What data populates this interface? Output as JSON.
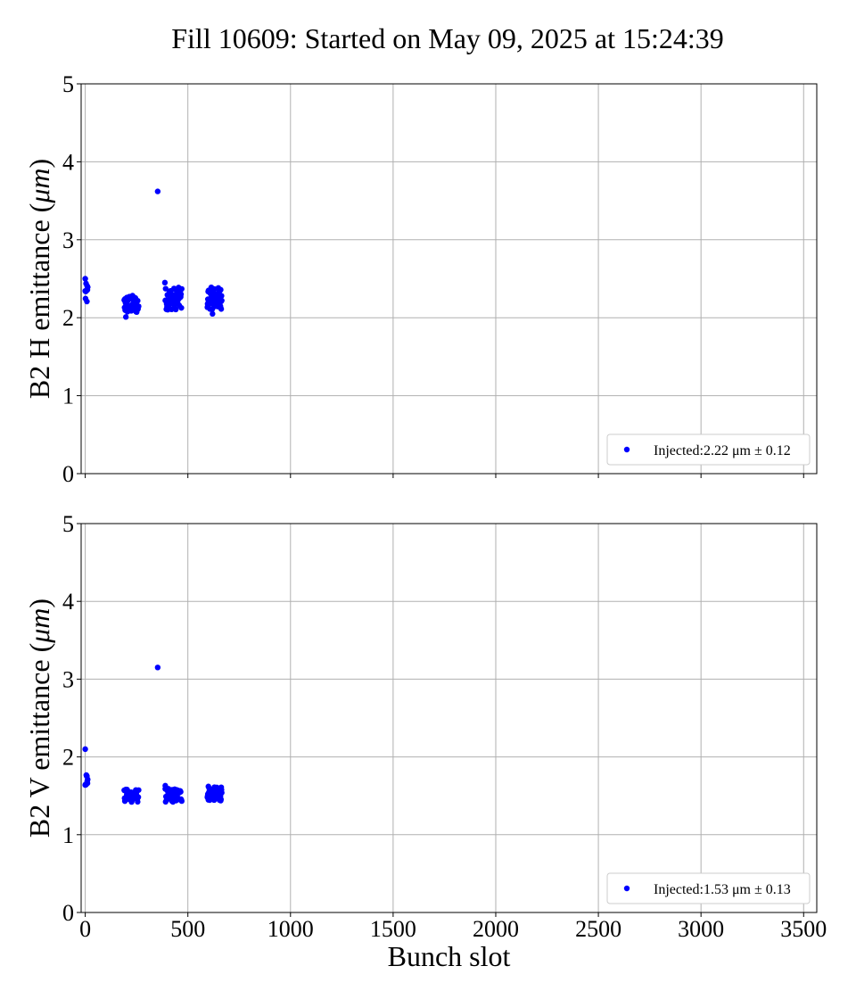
{
  "figure_title": "Fill 10609: Started on May 09, 2025 at 15:24:39",
  "colors": {
    "marker": "#0000ff",
    "grid": "#b0b0b0",
    "axis": "#000000"
  },
  "chart_data": [
    {
      "type": "scatter",
      "ylabel_text": "B2 H emittance (",
      "ylabel_unit": "μm",
      "ylabel_close": ")",
      "xlabel": "",
      "xlim": [
        -20,
        3564
      ],
      "ylim": [
        0,
        5
      ],
      "xticks": [
        0,
        500,
        1000,
        1500,
        2000,
        2500,
        3000,
        3500
      ],
      "yticks": [
        0,
        1,
        2,
        3,
        4,
        5
      ],
      "show_xtick_labels": false,
      "grid": true,
      "legend_position": "lower-right",
      "series": [
        {
          "name": "Injected:2.22 μm ± 0.12",
          "color": "#0000ff",
          "groups": [
            {
              "x_start": 0,
              "x_end": 12,
              "count": 10,
              "ymin": 2.1,
              "ymax": 2.5
            },
            {
              "x_start": 190,
              "x_end": 260,
              "count": 46,
              "ymin": 2.0,
              "ymax": 2.34
            },
            {
              "x_start": 390,
              "x_end": 470,
              "count": 48,
              "ymin": 2.04,
              "ymax": 2.45
            },
            {
              "x_start": 595,
              "x_end": 665,
              "count": 56,
              "ymin": 2.05,
              "ymax": 2.45
            }
          ],
          "outliers": [
            {
              "x": 353,
              "y": 3.62
            },
            {
              "x": 0,
              "y": 2.5
            },
            {
              "x": 198,
              "y": 2.01
            },
            {
              "x": 388,
              "y": 2.45
            },
            {
              "x": 620,
              "y": 2.05
            }
          ]
        }
      ]
    },
    {
      "type": "scatter",
      "ylabel_text": "B2 V emittance (",
      "ylabel_unit": "μm",
      "ylabel_close": ")",
      "xlabel": "Bunch slot",
      "xlim": [
        -20,
        3564
      ],
      "ylim": [
        0,
        5
      ],
      "xticks": [
        0,
        500,
        1000,
        1500,
        2000,
        2500,
        3000,
        3500
      ],
      "yticks": [
        0,
        1,
        2,
        3,
        4,
        5
      ],
      "show_xtick_labels": true,
      "grid": true,
      "legend_position": "lower-right",
      "series": [
        {
          "name": "Injected:1.53 μm ± 0.13",
          "color": "#0000ff",
          "groups": [
            {
              "x_start": 0,
              "x_end": 12,
              "count": 10,
              "ymin": 1.58,
              "ymax": 1.85
            },
            {
              "x_start": 190,
              "x_end": 260,
              "count": 46,
              "ymin": 1.38,
              "ymax": 1.62
            },
            {
              "x_start": 390,
              "x_end": 470,
              "count": 48,
              "ymin": 1.38,
              "ymax": 1.63
            },
            {
              "x_start": 595,
              "x_end": 665,
              "count": 56,
              "ymin": 1.4,
              "ymax": 1.65
            }
          ],
          "outliers": [
            {
              "x": 353,
              "y": 3.15
            },
            {
              "x": 0,
              "y": 2.1
            },
            {
              "x": 390,
              "y": 1.63
            },
            {
              "x": 600,
              "y": 1.62
            }
          ]
        }
      ]
    }
  ]
}
